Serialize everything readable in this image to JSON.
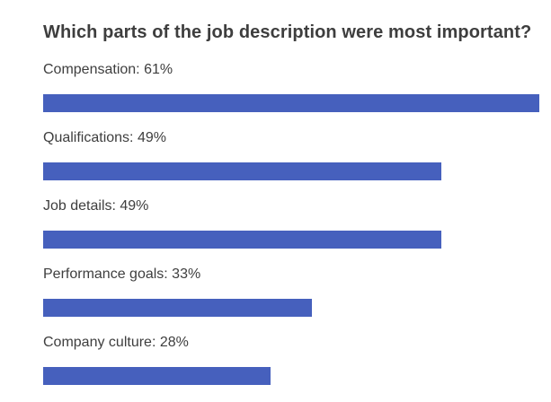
{
  "chart_data": {
    "type": "bar",
    "orientation": "horizontal",
    "title": "Which parts of the job description were most important?",
    "categories": [
      "Compensation",
      "Qualifications",
      "Job details",
      "Performance goals",
      "Company culture"
    ],
    "values": [
      61,
      49,
      49,
      33,
      28
    ],
    "value_unit": "%",
    "labels": [
      "Compensation: 61%",
      "Qualifications: 49%",
      "Job details: 49%",
      "Performance goals: 33%",
      "Company culture: 28%"
    ],
    "xlim": [
      0,
      100
    ],
    "axes_visible": false,
    "gridlines": false,
    "legend": false
  },
  "colors": {
    "bar": "#4660bd",
    "title_text": "#3e3e3e",
    "label_text": "#3e3e3e",
    "background": "#ffffff"
  }
}
